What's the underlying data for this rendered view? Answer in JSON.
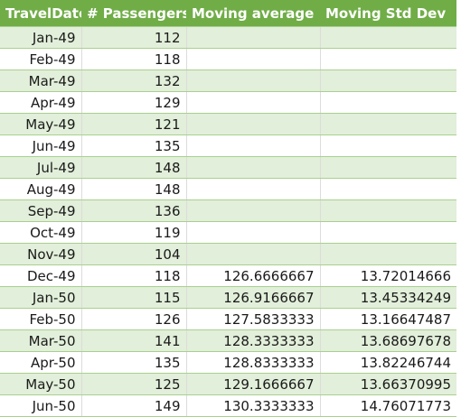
{
  "table": {
    "headers": [
      "TravelDate",
      "# Passengers",
      "Moving average",
      "Moving Std Dev"
    ],
    "rows": [
      [
        "Jan-49",
        "112",
        "",
        ""
      ],
      [
        "Feb-49",
        "118",
        "",
        ""
      ],
      [
        "Mar-49",
        "132",
        "",
        ""
      ],
      [
        "Apr-49",
        "129",
        "",
        ""
      ],
      [
        "May-49",
        "121",
        "",
        ""
      ],
      [
        "Jun-49",
        "135",
        "",
        ""
      ],
      [
        "Jul-49",
        "148",
        "",
        ""
      ],
      [
        "Aug-49",
        "148",
        "",
        ""
      ],
      [
        "Sep-49",
        "136",
        "",
        ""
      ],
      [
        "Oct-49",
        "119",
        "",
        ""
      ],
      [
        "Nov-49",
        "104",
        "",
        ""
      ],
      [
        "Dec-49",
        "118",
        "126.6666667",
        "13.72014666"
      ],
      [
        "Jan-50",
        "115",
        "126.9166667",
        "13.45334249"
      ],
      [
        "Feb-50",
        "126",
        "127.5833333",
        "13.16647487"
      ],
      [
        "Mar-50",
        "141",
        "128.3333333",
        "13.68697678"
      ],
      [
        "Apr-50",
        "135",
        "128.8333333",
        "13.82246744"
      ],
      [
        "May-50",
        "125",
        "129.1666667",
        "13.66370995"
      ],
      [
        "Jun-50",
        "149",
        "130.3333333",
        "14.76071773"
      ]
    ]
  },
  "colors": {
    "header_fill": "#70ad47",
    "header_text": "#ffffff",
    "band_fill": "#e2efda",
    "border": "#a9d08e"
  }
}
